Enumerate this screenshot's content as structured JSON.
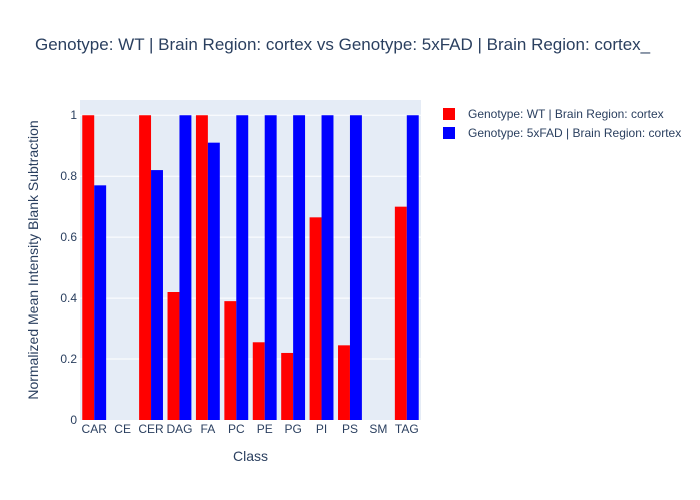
{
  "chart_data": {
    "type": "bar",
    "title": "Genotype: WT | Brain Region: cortex vs Genotype: 5xFAD | Brain Region: cortex_",
    "xlabel": "Class",
    "ylabel": "Normalized Mean Intensity Blank Subtraction",
    "ylim": [
      0,
      1.05
    ],
    "yticks": [
      0,
      0.2,
      0.4,
      0.6,
      0.8,
      1
    ],
    "ytick_labels": [
      "0",
      "0.2",
      "0.4",
      "0.6",
      "0.8",
      "1"
    ],
    "categories": [
      "CAR",
      "CE",
      "CER",
      "DAG",
      "FA",
      "PC",
      "PE",
      "PG",
      "PI",
      "PS",
      "SM",
      "TAG"
    ],
    "series": [
      {
        "name": "Genotype: WT | Brain Region: cortex",
        "color": "#ff0000",
        "values": [
          1,
          null,
          1,
          0.42,
          1,
          0.39,
          0.255,
          0.22,
          0.665,
          0.245,
          null,
          0.7
        ]
      },
      {
        "name": "Genotype: 5xFAD | Brain Region: cortex",
        "color": "#0000ff",
        "values": [
          0.77,
          null,
          0.82,
          1,
          0.91,
          1,
          1,
          1,
          1,
          1,
          null,
          1
        ]
      }
    ],
    "legend_position": "top-right",
    "grid": true
  }
}
